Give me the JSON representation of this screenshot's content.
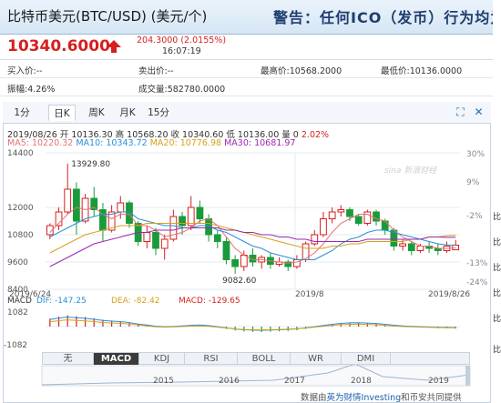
{
  "header": {
    "title": "比特币美元(BTC/USD) (美元/个)",
    "marquee": "警告：任何ICO（发币）行为均为"
  },
  "quote": {
    "price": "10340.6000",
    "change": "204.3000 (2.0155%)",
    "time": "16:07:19",
    "trend": "up"
  },
  "stats": {
    "bid": "买入价:--",
    "ask": "卖出价:--",
    "high": "最高价:10568.2000",
    "low": "最低价:10136.0000",
    "amplitude": "振幅:4.26%",
    "volume": "成交量:582780.0000"
  },
  "tabs": [
    "1分",
    "日K",
    "周K",
    "月K",
    "15分"
  ],
  "active_tab": "日K",
  "toolbar": {
    "fullscreen_icon": "fullscreen-icon",
    "close_icon": "close-icon"
  },
  "ohlc_line": {
    "date": "2019/08/26",
    "text": "开 10136.30 高 10568.20 收 10340.60 低 10136.00 量 0",
    "pct": "2.02%"
  },
  "ma_line": {
    "ma5": "MA5: 10220.32",
    "ma10": "MA10: 10343.72",
    "ma20": "MA20: 10776.98",
    "ma30": "MA30: 10681.97"
  },
  "price_axis": [
    "14400",
    "12000",
    "10800",
    "9600",
    "8400"
  ],
  "pct_axis": [
    "30%",
    "9%",
    "-2%",
    "-13%",
    "-24%"
  ],
  "annotations": {
    "high": "13929.80",
    "low": "9082.60",
    "watermark": "sina 新浪财经"
  },
  "date_axis": [
    "2019/6/24",
    "2019/8",
    "2019/8/26"
  ],
  "macd": {
    "dif": "DIF: -147.25",
    "dea": "DEA: -82.42",
    "macd": "MACD: -129.65",
    "axis_top": "1082",
    "axis_bottom": "-1082"
  },
  "indicator_tabs": [
    "无",
    "MACD",
    "KDJ",
    "RSI",
    "BOLL",
    "WR",
    "DMI"
  ],
  "active_indicator": "MACD",
  "nav_years": [
    "2015",
    "2016",
    "2017",
    "2018",
    "2019"
  ],
  "footer": {
    "prefix": "数据由",
    "brand": "英为财情Investing",
    "suffix": "和币安共同提供"
  },
  "side_labels": [
    "比",
    "比",
    "比",
    "比",
    "比",
    "比"
  ],
  "colors": {
    "up": "#d71f1f",
    "down": "#1a9b3a",
    "ma5": "#e57373",
    "ma10": "#2a8fd6",
    "ma20": "#d4a21c",
    "ma30": "#9c27b0",
    "accent": "#2a6fb5"
  },
  "chart_data": {
    "type": "candlestick",
    "title": "比特币美元(BTC/USD) 日K",
    "dates_range": [
      "2019/6/24",
      "2019/8/26"
    ],
    "ylim": [
      8400,
      14400
    ],
    "candles": [
      {
        "o": 10800,
        "c": 11200,
        "h": 11300,
        "l": 10600
      },
      {
        "o": 11200,
        "c": 11800,
        "h": 12000,
        "l": 11000
      },
      {
        "o": 11800,
        "c": 12800,
        "h": 13929.8,
        "l": 11700
      },
      {
        "o": 12800,
        "c": 11400,
        "h": 13100,
        "l": 10800
      },
      {
        "o": 11400,
        "c": 12400,
        "h": 12600,
        "l": 11300
      },
      {
        "o": 12400,
        "c": 11900,
        "h": 12900,
        "l": 11600
      },
      {
        "o": 11900,
        "c": 11000,
        "h": 12200,
        "l": 10500
      },
      {
        "o": 11000,
        "c": 11800,
        "h": 12100,
        "l": 10900
      },
      {
        "o": 11800,
        "c": 12200,
        "h": 12500,
        "l": 11500
      },
      {
        "o": 12200,
        "c": 11300,
        "h": 12300,
        "l": 11100
      },
      {
        "o": 11300,
        "c": 10500,
        "h": 11400,
        "l": 10300
      },
      {
        "o": 10500,
        "c": 10900,
        "h": 11200,
        "l": 10200
      },
      {
        "o": 10900,
        "c": 10200,
        "h": 11100,
        "l": 9900
      },
      {
        "o": 10200,
        "c": 10600,
        "h": 10800,
        "l": 9700
      },
      {
        "o": 10600,
        "c": 11600,
        "h": 11900,
        "l": 10500
      },
      {
        "o": 11600,
        "c": 11200,
        "h": 11800,
        "l": 10800
      },
      {
        "o": 11200,
        "c": 12000,
        "h": 12500,
        "l": 11000
      },
      {
        "o": 12000,
        "c": 11500,
        "h": 12300,
        "l": 11300
      },
      {
        "o": 11500,
        "c": 10800,
        "h": 11700,
        "l": 10500
      },
      {
        "o": 10800,
        "c": 10500,
        "h": 11000,
        "l": 10200
      },
      {
        "o": 10500,
        "c": 9700,
        "h": 10700,
        "l": 9500
      },
      {
        "o": 9700,
        "c": 9400,
        "h": 9900,
        "l": 9082.6
      },
      {
        "o": 9400,
        "c": 9900,
        "h": 10100,
        "l": 9200
      },
      {
        "o": 9900,
        "c": 9600,
        "h": 10200,
        "l": 9400
      },
      {
        "o": 9600,
        "c": 9800,
        "h": 9900,
        "l": 9300
      },
      {
        "o": 9800,
        "c": 9500,
        "h": 10000,
        "l": 9300
      },
      {
        "o": 9500,
        "c": 9600,
        "h": 9800,
        "l": 9400
      },
      {
        "o": 9600,
        "c": 9400,
        "h": 9700,
        "l": 9200
      },
      {
        "o": 9400,
        "c": 9700,
        "h": 9900,
        "l": 9300
      },
      {
        "o": 9700,
        "c": 10400,
        "h": 10500,
        "l": 9600
      },
      {
        "o": 10400,
        "c": 10800,
        "h": 11000,
        "l": 10300
      },
      {
        "o": 10800,
        "c": 11500,
        "h": 11800,
        "l": 10700
      },
      {
        "o": 11500,
        "c": 11800,
        "h": 12000,
        "l": 11300
      },
      {
        "o": 11800,
        "c": 11900,
        "h": 12100,
        "l": 11600
      },
      {
        "o": 11900,
        "c": 11600,
        "h": 12000,
        "l": 11400
      },
      {
        "o": 11600,
        "c": 11300,
        "h": 11700,
        "l": 11200
      },
      {
        "o": 11300,
        "c": 11800,
        "h": 11900,
        "l": 11200
      },
      {
        "o": 11800,
        "c": 11400,
        "h": 11900,
        "l": 11200
      },
      {
        "o": 11400,
        "c": 11000,
        "h": 11500,
        "l": 10800
      },
      {
        "o": 11000,
        "c": 10300,
        "h": 11100,
        "l": 10100
      },
      {
        "o": 10300,
        "c": 10400,
        "h": 10600,
        "l": 10100
      },
      {
        "o": 10400,
        "c": 10100,
        "h": 10500,
        "l": 9900
      },
      {
        "o": 10100,
        "c": 10300,
        "h": 10400,
        "l": 10000
      },
      {
        "o": 10300,
        "c": 10200,
        "h": 10500,
        "l": 10000
      },
      {
        "o": 10200,
        "c": 10100,
        "h": 10400,
        "l": 9900
      },
      {
        "o": 10100,
        "c": 10300,
        "h": 10500,
        "l": 10000
      },
      {
        "o": 10136.3,
        "c": 10340.6,
        "h": 10568.2,
        "l": 10136
      }
    ],
    "series": [
      {
        "name": "MA5",
        "values": [
          10900,
          11300,
          11700,
          12000,
          11900,
          12000,
          11700,
          11500,
          11700,
          11700,
          11200,
          11200,
          11000,
          10700,
          10800,
          10900,
          11100,
          11400,
          11500,
          11200,
          10700,
          10200,
          9900,
          9700,
          9700,
          9650,
          9600,
          9550,
          9600,
          9750,
          10000,
          10400,
          10900,
          11300,
          11500,
          11700,
          11700,
          11500,
          11400,
          11000,
          10700,
          10500,
          10300,
          10300,
          10200,
          10200,
          10220
        ]
      },
      {
        "name": "MA10",
        "values": [
          10700,
          10900,
          11100,
          11300,
          11500,
          11600,
          11700,
          11700,
          11800,
          11800,
          11500,
          11400,
          11300,
          11200,
          11200,
          11100,
          11100,
          11200,
          11200,
          11000,
          10900,
          10700,
          10500,
          10300,
          10200,
          10000,
          9900,
          9800,
          9700,
          9700,
          9700,
          9900,
          10100,
          10400,
          10600,
          10700,
          10900,
          11000,
          11000,
          10900,
          10800,
          10700,
          10600,
          10500,
          10400,
          10350,
          10344
        ]
      },
      {
        "name": "MA20",
        "values": [
          10000,
          10200,
          10400,
          10600,
          10800,
          10900,
          11000,
          11100,
          11200,
          11200,
          11200,
          11300,
          11300,
          11300,
          11300,
          11300,
          11300,
          11300,
          11300,
          11200,
          11100,
          11000,
          10900,
          10800,
          10700,
          10600,
          10500,
          10400,
          10300,
          10200,
          10200,
          10200,
          10300,
          10300,
          10400,
          10400,
          10500,
          10500,
          10500,
          10500,
          10500,
          10600,
          10600,
          10700,
          10700,
          10750,
          10777
        ]
      },
      {
        "name": "MA30",
        "values": [
          9400,
          9600,
          9800,
          10000,
          10200,
          10400,
          10500,
          10600,
          10700,
          10800,
          10900,
          10900,
          11000,
          11000,
          11000,
          11100,
          11100,
          11100,
          11100,
          11100,
          11000,
          11000,
          10900,
          10900,
          10800,
          10800,
          10700,
          10700,
          10600,
          10600,
          10500,
          10500,
          10500,
          10500,
          10500,
          10500,
          10600,
          10600,
          10600,
          10600,
          10600,
          10600,
          10600,
          10700,
          10700,
          10680,
          10682
        ]
      }
    ],
    "macd_hist": [
      500,
      620,
      700,
      650,
      600,
      520,
      430,
      380,
      340,
      260,
      150,
      80,
      -20,
      -60,
      -40,
      10,
      50,
      70,
      30,
      -60,
      -150,
      -240,
      -300,
      -330,
      -340,
      -320,
      -300,
      -270,
      -230,
      -150,
      -60,
      40,
      130,
      200,
      240,
      250,
      230,
      190,
      130,
      60,
      10,
      -30,
      -60,
      -80,
      -100,
      -115,
      -129.65
    ],
    "macd_ylim": [
      -1082,
      1082
    ]
  }
}
